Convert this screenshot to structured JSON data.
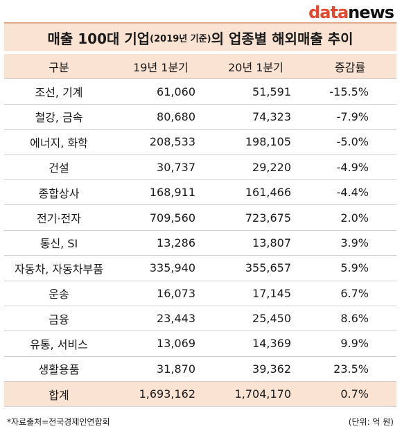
{
  "logo": {
    "part1": "data",
    "part2": "news"
  },
  "title": {
    "main": "매출 100대 기업",
    "sub": "(2019년 기준)",
    "rest": "의 업종별 해외매출 추이"
  },
  "table": {
    "headers": [
      "구분",
      "19년 1분기",
      "20년 1분기",
      "증감률"
    ],
    "rows": [
      [
        "조선, 기계",
        "61,060",
        "51,591",
        "-15.5%"
      ],
      [
        "철강, 금속",
        "80,680",
        "74,323",
        "-7.9%"
      ],
      [
        "에너지, 화학",
        "208,533",
        "198,105",
        "-5.0%"
      ],
      [
        "건설",
        "30,737",
        "29,220",
        "-4.9%"
      ],
      [
        "종합상사",
        "168,911",
        "161,466",
        "-4.4%"
      ],
      [
        "전기·전자",
        "709,560",
        "723,675",
        "2.0%"
      ],
      [
        "통신, SI",
        "13,286",
        "13,807",
        "3.9%"
      ],
      [
        "자동차, 자동차부품",
        "335,940",
        "355,657",
        "5.9%"
      ],
      [
        "운송",
        "16,073",
        "17,145",
        "6.7%"
      ],
      [
        "금융",
        "23,443",
        "25,450",
        "8.6%"
      ],
      [
        "유통, 서비스",
        "13,069",
        "14,369",
        "9.9%"
      ],
      [
        "생활용품",
        "31,870",
        "39,362",
        "23.5%"
      ]
    ],
    "total": [
      "합계",
      "1,693,162",
      "1,704,170",
      "0.7%"
    ]
  },
  "footer": {
    "source": "*자료출처=전국경제인연합회",
    "unit": "(단위: 억 원)"
  }
}
